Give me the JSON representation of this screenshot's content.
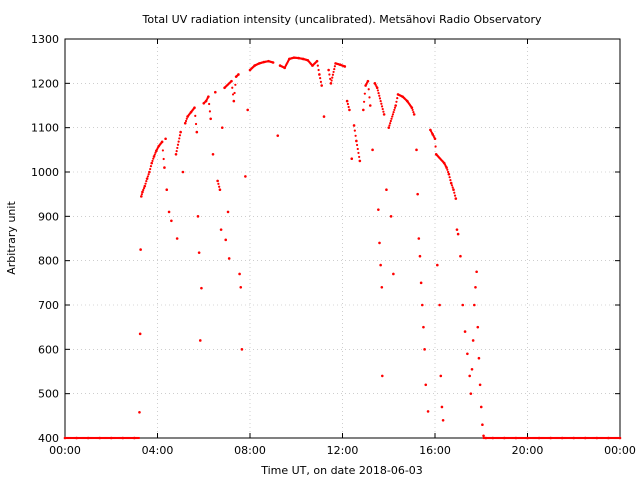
{
  "chart_data": {
    "type": "scatter",
    "title": "Total UV radiation intensity (uncalibrated). Metsähovi Radio Observatory",
    "xlabel": "Time UT, on date 2018-06-03",
    "ylabel": "Arbitrary unit",
    "xlim": [
      0,
      24
    ],
    "ylim": [
      400,
      1300
    ],
    "grid": true,
    "x_ticks": [
      0,
      4,
      8,
      12,
      16,
      20,
      24
    ],
    "x_tick_labels": [
      "00:00",
      "04:00",
      "08:00",
      "12:00",
      "16:00",
      "20:00",
      "00:00"
    ],
    "y_ticks": [
      400,
      500,
      600,
      700,
      800,
      900,
      1000,
      1100,
      1200,
      1300
    ],
    "y_tick_labels": [
      "400",
      "500",
      "600",
      "700",
      "800",
      "900",
      "1000",
      "1100",
      "1200",
      "1300"
    ],
    "marker_color": "#ff0000",
    "series": [
      {
        "x_unit": "hours UT",
        "points": [
          [
            0.0,
            400
          ],
          [
            0.5,
            400
          ],
          [
            1.0,
            400
          ],
          [
            1.5,
            400
          ],
          [
            2.0,
            400
          ],
          [
            2.5,
            400
          ],
          [
            3.0,
            400
          ],
          [
            3.22,
            458
          ],
          [
            3.25,
            635
          ],
          [
            3.27,
            825
          ],
          [
            3.3,
            945
          ],
          [
            3.35,
            955
          ],
          [
            3.45,
            968
          ],
          [
            3.55,
            985
          ],
          [
            3.65,
            1000
          ],
          [
            3.75,
            1020
          ],
          [
            3.85,
            1035
          ],
          [
            3.95,
            1048
          ],
          [
            4.05,
            1058
          ],
          [
            4.2,
            1068
          ],
          [
            4.35,
            1075
          ],
          [
            4.3,
            1010
          ],
          [
            4.4,
            960
          ],
          [
            4.5,
            910
          ],
          [
            4.6,
            890
          ],
          [
            4.8,
            1040
          ],
          [
            4.85,
            850
          ],
          [
            5.0,
            1090
          ],
          [
            5.1,
            1000
          ],
          [
            5.2,
            1110
          ],
          [
            5.3,
            1125
          ],
          [
            5.45,
            1135
          ],
          [
            5.6,
            1145
          ],
          [
            5.7,
            1090
          ],
          [
            5.75,
            900
          ],
          [
            5.8,
            818
          ],
          [
            5.85,
            620
          ],
          [
            5.9,
            738
          ],
          [
            6.0,
            1155
          ],
          [
            6.1,
            1160
          ],
          [
            6.2,
            1170
          ],
          [
            6.3,
            1120
          ],
          [
            6.4,
            1040
          ],
          [
            6.5,
            1180
          ],
          [
            6.6,
            980
          ],
          [
            6.7,
            960
          ],
          [
            6.75,
            870
          ],
          [
            6.8,
            1100
          ],
          [
            6.9,
            1190
          ],
          [
            6.95,
            847
          ],
          [
            7.05,
            910
          ],
          [
            7.1,
            805
          ],
          [
            7.2,
            1205
          ],
          [
            7.3,
            1160
          ],
          [
            7.4,
            1215
          ],
          [
            7.5,
            1220
          ],
          [
            7.55,
            770
          ],
          [
            7.6,
            740
          ],
          [
            7.65,
            600
          ],
          [
            7.8,
            990
          ],
          [
            7.9,
            1140
          ],
          [
            8.0,
            1230
          ],
          [
            8.2,
            1240
          ],
          [
            8.4,
            1245
          ],
          [
            8.6,
            1248
          ],
          [
            8.8,
            1250
          ],
          [
            9.0,
            1247
          ],
          [
            9.2,
            1082
          ],
          [
            9.3,
            1240
          ],
          [
            9.5,
            1235
          ],
          [
            9.7,
            1255
          ],
          [
            9.9,
            1258
          ],
          [
            10.1,
            1257
          ],
          [
            10.3,
            1255
          ],
          [
            10.5,
            1252
          ],
          [
            10.7,
            1240
          ],
          [
            10.9,
            1250
          ],
          [
            11.0,
            1220
          ],
          [
            11.1,
            1195
          ],
          [
            11.2,
            1125
          ],
          [
            11.4,
            1230
          ],
          [
            11.5,
            1200
          ],
          [
            11.7,
            1245
          ],
          [
            11.9,
            1242
          ],
          [
            12.1,
            1238
          ],
          [
            12.2,
            1160
          ],
          [
            12.3,
            1140
          ],
          [
            12.4,
            1030
          ],
          [
            12.5,
            1105
          ],
          [
            12.6,
            1070
          ],
          [
            12.75,
            1025
          ],
          [
            12.9,
            1140
          ],
          [
            13.0,
            1195
          ],
          [
            13.1,
            1205
          ],
          [
            13.2,
            1150
          ],
          [
            13.3,
            1050
          ],
          [
            13.4,
            1200
          ],
          [
            13.5,
            1190
          ],
          [
            13.55,
            915
          ],
          [
            13.6,
            840
          ],
          [
            13.65,
            790
          ],
          [
            13.7,
            740
          ],
          [
            13.72,
            540
          ],
          [
            13.8,
            1130
          ],
          [
            13.9,
            960
          ],
          [
            14.0,
            1100
          ],
          [
            14.1,
            900
          ],
          [
            14.2,
            770
          ],
          [
            14.3,
            1150
          ],
          [
            14.4,
            1175
          ],
          [
            14.6,
            1170
          ],
          [
            14.8,
            1160
          ],
          [
            15.0,
            1145
          ],
          [
            15.1,
            1130
          ],
          [
            15.2,
            1050
          ],
          [
            15.25,
            950
          ],
          [
            15.3,
            850
          ],
          [
            15.35,
            810
          ],
          [
            15.4,
            750
          ],
          [
            15.45,
            700
          ],
          [
            15.5,
            650
          ],
          [
            15.55,
            600
          ],
          [
            15.6,
            520
          ],
          [
            15.7,
            460
          ],
          [
            15.8,
            1095
          ],
          [
            15.9,
            1085
          ],
          [
            16.0,
            1075
          ],
          [
            16.05,
            1040
          ],
          [
            16.1,
            790
          ],
          [
            16.2,
            700
          ],
          [
            16.25,
            540
          ],
          [
            16.3,
            470
          ],
          [
            16.35,
            440
          ],
          [
            16.4,
            1020
          ],
          [
            16.5,
            1010
          ],
          [
            16.6,
            995
          ],
          [
            16.7,
            975
          ],
          [
            16.8,
            960
          ],
          [
            16.9,
            940
          ],
          [
            16.95,
            870
          ],
          [
            17.0,
            860
          ],
          [
            17.1,
            810
          ],
          [
            17.2,
            700
          ],
          [
            17.3,
            640
          ],
          [
            17.4,
            590
          ],
          [
            17.5,
            540
          ],
          [
            17.55,
            500
          ],
          [
            17.6,
            555
          ],
          [
            17.65,
            620
          ],
          [
            17.7,
            700
          ],
          [
            17.75,
            740
          ],
          [
            17.8,
            775
          ],
          [
            17.85,
            650
          ],
          [
            17.9,
            580
          ],
          [
            17.95,
            520
          ],
          [
            18.0,
            470
          ],
          [
            18.05,
            430
          ],
          [
            18.1,
            405
          ],
          [
            18.2,
            400
          ],
          [
            18.5,
            400
          ],
          [
            19.0,
            400
          ],
          [
            19.5,
            400
          ],
          [
            20.0,
            400
          ],
          [
            20.5,
            400
          ],
          [
            21.0,
            400
          ],
          [
            21.5,
            400
          ],
          [
            22.0,
            400
          ],
          [
            22.5,
            400
          ],
          [
            23.0,
            400
          ],
          [
            23.5,
            400
          ],
          [
            24.0,
            400
          ]
        ]
      }
    ]
  }
}
